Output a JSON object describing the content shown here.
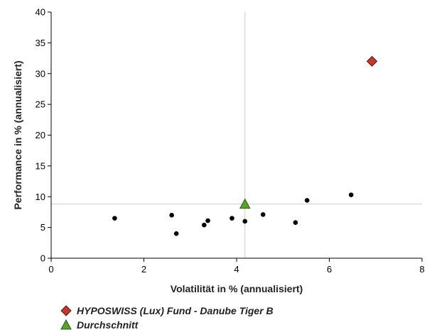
{
  "chart_data": {
    "type": "scatter",
    "xlabel": "Volatilität in % (annualisiert)",
    "ylabel": "Performance in % (annualisiert)",
    "xlim": [
      0,
      8
    ],
    "ylim": [
      0,
      40
    ],
    "xticks": [
      0,
      2,
      4,
      6,
      8
    ],
    "yticks": [
      0,
      5,
      10,
      15,
      20,
      25,
      30,
      35,
      40
    ],
    "grid": false,
    "legend_placement": "bottom-left",
    "reference_lines": {
      "x": 4.18,
      "y": 8.8
    },
    "series": [
      {
        "name": "HYPOSWISS (Lux) Fund - Danube Tiger B",
        "marker": "diamond",
        "color": "#c0392b",
        "points": [
          {
            "x": 6.92,
            "y": 32.0
          }
        ]
      },
      {
        "name": "Durchschnitt",
        "marker": "triangle",
        "color": "#5aa02c",
        "points": [
          {
            "x": 4.18,
            "y": 8.8
          }
        ]
      },
      {
        "name": "",
        "marker": "dot",
        "color": "#000000",
        "points": [
          {
            "x": 1.37,
            "y": 6.5
          },
          {
            "x": 2.6,
            "y": 7.0
          },
          {
            "x": 2.7,
            "y": 4.0
          },
          {
            "x": 3.3,
            "y": 5.4
          },
          {
            "x": 3.38,
            "y": 6.1
          },
          {
            "x": 3.9,
            "y": 6.5
          },
          {
            "x": 4.18,
            "y": 6.0
          },
          {
            "x": 4.57,
            "y": 7.1
          },
          {
            "x": 5.27,
            "y": 5.8
          },
          {
            "x": 5.52,
            "y": 9.4
          },
          {
            "x": 6.47,
            "y": 10.3
          }
        ]
      }
    ]
  },
  "legend": {
    "items": [
      {
        "label": "HYPOSWISS (Lux) Fund - Danube Tiger B",
        "icon": "diamond-icon",
        "color": "#c0392b"
      },
      {
        "label": "Durchschnitt",
        "icon": "triangle-icon",
        "color": "#5aa02c"
      }
    ]
  }
}
